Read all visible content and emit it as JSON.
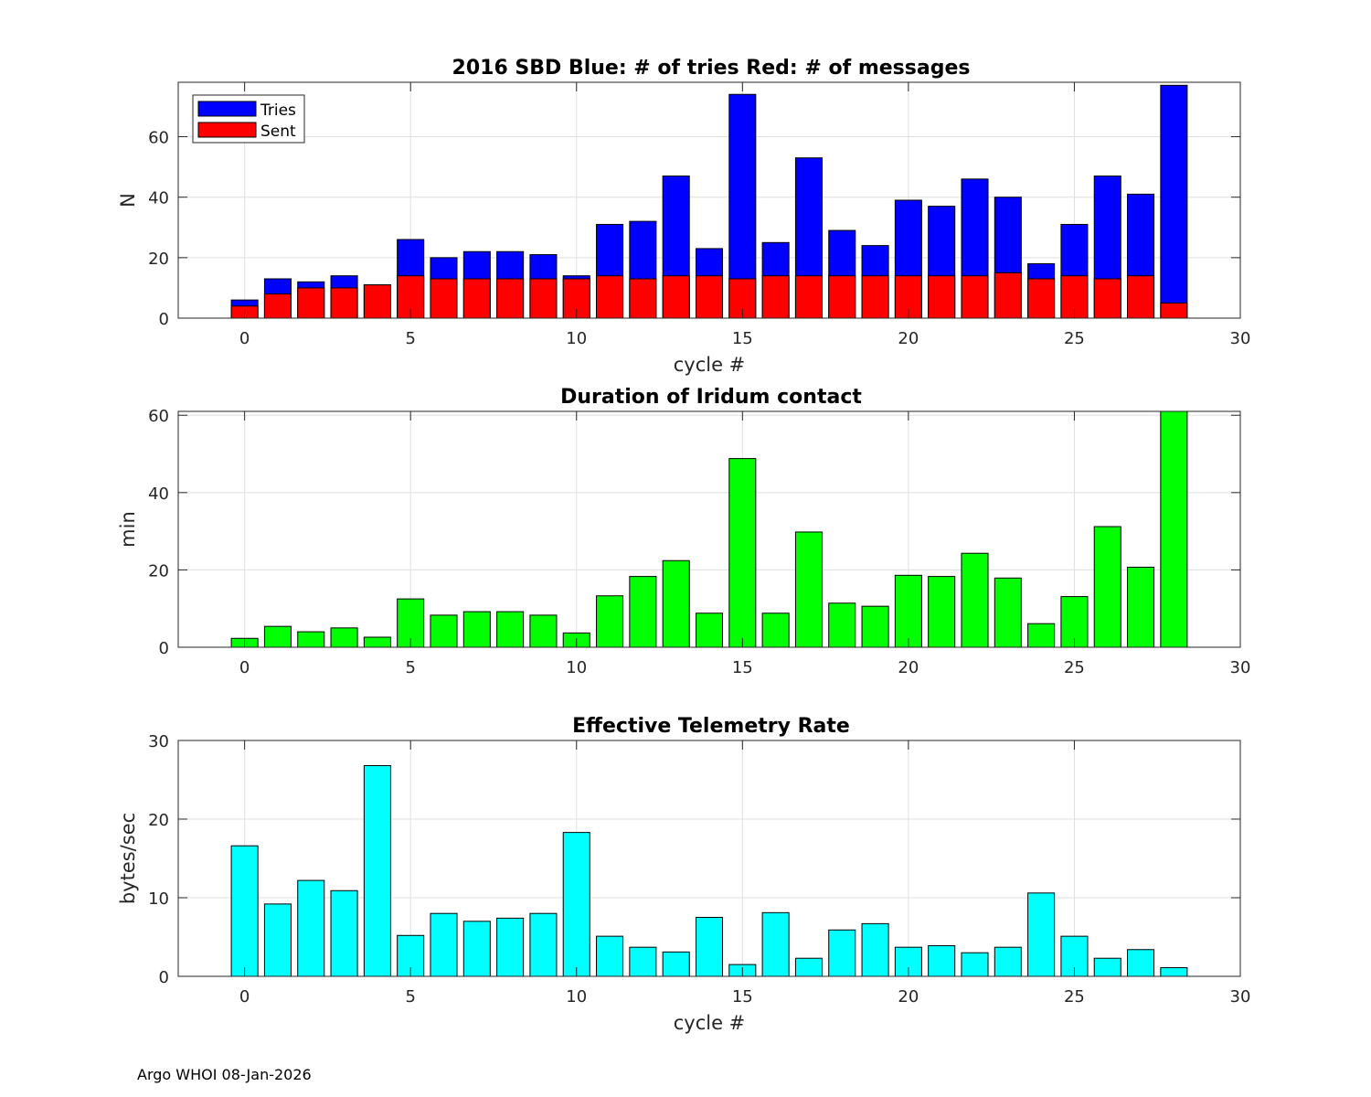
{
  "chart_data": [
    {
      "type": "bar",
      "title": "2016 SBD  Blue: # of tries   Red: # of messages",
      "xlabel": "cycle #",
      "ylabel": "N",
      "xlim": [
        -2,
        30
      ],
      "ylim": [
        0,
        78
      ],
      "xticks": [
        0,
        5,
        10,
        15,
        20,
        25,
        30
      ],
      "yticks": [
        0,
        20,
        40,
        60
      ],
      "grid": true,
      "legend_position": "top-left",
      "x": [
        0,
        1,
        2,
        3,
        4,
        5,
        6,
        7,
        8,
        9,
        10,
        11,
        12,
        13,
        14,
        15,
        16,
        17,
        18,
        19,
        20,
        21,
        22,
        23,
        24,
        25,
        26,
        27,
        28
      ],
      "series": [
        {
          "name": "Tries",
          "color": "#0000ff",
          "values": [
            6,
            13,
            12,
            14,
            11,
            26,
            20,
            22,
            22,
            21,
            14,
            31,
            32,
            47,
            23,
            74,
            25,
            53,
            29,
            24,
            39,
            37,
            46,
            40,
            18,
            31,
            47,
            41,
            77
          ]
        },
        {
          "name": "Sent",
          "color": "#ff0000",
          "values": [
            4,
            8,
            10,
            10,
            11,
            14,
            13,
            13,
            13,
            13,
            13,
            14,
            13,
            14,
            14,
            13,
            14,
            14,
            14,
            14,
            14,
            14,
            14,
            15,
            13,
            14,
            13,
            14,
            5
          ]
        }
      ]
    },
    {
      "type": "bar",
      "title": "Duration of Iridum contact",
      "xlabel": "",
      "ylabel": "min",
      "xlim": [
        -2,
        30
      ],
      "ylim": [
        0,
        61
      ],
      "xticks": [
        0,
        5,
        10,
        15,
        20,
        25,
        30
      ],
      "yticks": [
        0,
        20,
        40,
        60
      ],
      "grid": true,
      "x": [
        -1,
        0,
        1,
        2,
        3,
        4,
        5,
        6,
        7,
        8,
        9,
        10,
        11,
        12,
        13,
        14,
        15,
        16,
        17,
        18,
        19,
        20,
        21,
        22,
        23,
        24,
        25,
        26,
        27,
        28
      ],
      "series": [
        {
          "name": "duration",
          "color": "#00ff00",
          "values": [
            0,
            2.3,
            5.4,
            4,
            5,
            2.6,
            12.5,
            8.3,
            9.2,
            9.2,
            8.3,
            3.7,
            13.3,
            18.3,
            22.4,
            8.8,
            48.8,
            8.8,
            29.8,
            11.4,
            10.6,
            18.6,
            18.3,
            24.3,
            17.9,
            6.1,
            13.1,
            31.2,
            20.7,
            61
          ]
        }
      ]
    },
    {
      "type": "bar",
      "title": "Effective Telemetry Rate",
      "xlabel": "cycle #",
      "ylabel": "bytes/sec",
      "xlim": [
        -2,
        30
      ],
      "ylim": [
        0,
        30
      ],
      "xticks": [
        0,
        5,
        10,
        15,
        20,
        25,
        30
      ],
      "yticks": [
        0,
        10,
        20,
        30
      ],
      "grid": true,
      "x": [
        0,
        1,
        2,
        3,
        4,
        5,
        6,
        7,
        8,
        9,
        10,
        11,
        12,
        13,
        14,
        15,
        16,
        17,
        18,
        19,
        20,
        21,
        22,
        23,
        24,
        25,
        26,
        27,
        28
      ],
      "series": [
        {
          "name": "rate",
          "color": "#00ffff",
          "values": [
            16.6,
            9.2,
            12.2,
            10.9,
            26.8,
            5.2,
            8,
            7,
            7.4,
            8,
            18.3,
            5.1,
            3.7,
            3.1,
            7.5,
            1.5,
            8.1,
            2.3,
            5.9,
            6.7,
            3.7,
            3.9,
            3,
            3.7,
            10.6,
            5.1,
            2.3,
            3.4,
            1.1
          ]
        }
      ]
    }
  ],
  "legend": {
    "tries_label": "Tries",
    "sent_label": "Sent"
  },
  "footer": {
    "text": "Argo WHOI 08-Jan-2026"
  }
}
